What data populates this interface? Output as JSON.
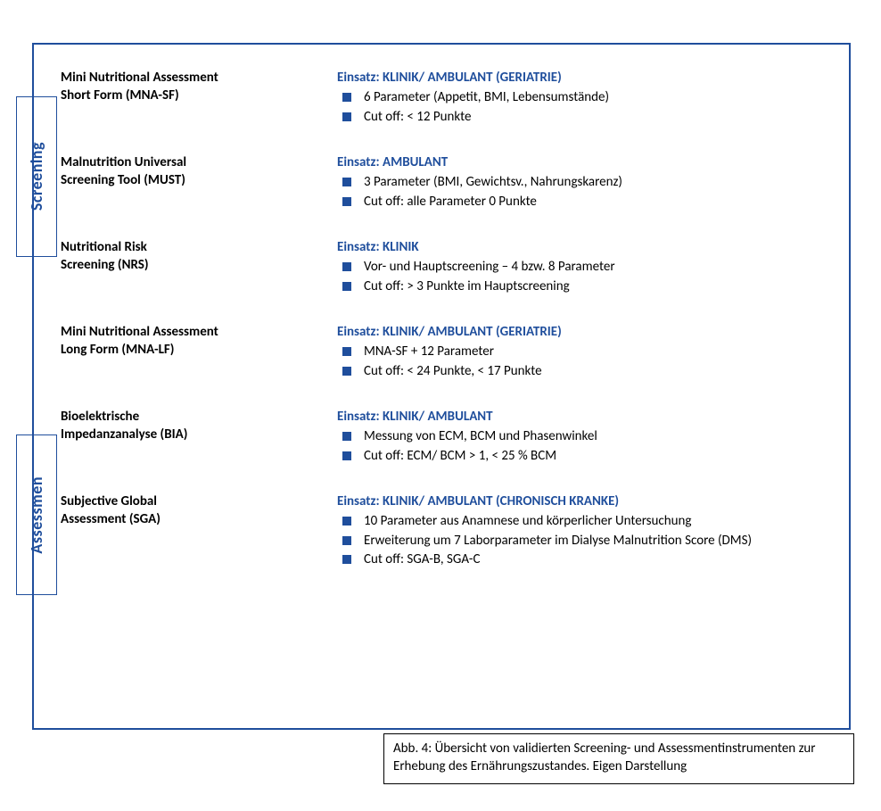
{
  "colors": {
    "accent": "#1f4e9c",
    "text": "#000000",
    "bg": "#ffffff"
  },
  "sideLabels": {
    "screening": "Screening",
    "assessment": "Assessmen"
  },
  "einsatzPrefix": "Einsatz: ",
  "sections": [
    {
      "id": "mna-sf",
      "title_line1": "Mini Nutritional Assessment",
      "title_line2": "Short Form (MNA-SF)",
      "einsatz": "KLINIK/ AMBULANT (GERIATRIE)",
      "bullets": [
        "6 Parameter (Appetit, BMI, Lebensumstände)",
        "Cut off: < 12 Punkte"
      ]
    },
    {
      "id": "must",
      "title_line1": "Malnutrition Universal",
      "title_line2": "Screening Tool (MUST)",
      "einsatz": "AMBULANT",
      "bullets": [
        "3 Parameter (BMI, Gewichtsv., Nahrungskarenz)",
        "Cut off: alle Parameter 0 Punkte"
      ]
    },
    {
      "id": "nrs",
      "title_line1": "Nutritional Risk",
      "title_line2": "Screening (NRS)",
      "einsatz": "KLINIK",
      "bullets": [
        "Vor- und Hauptscreening – 4 bzw. 8 Parameter",
        "Cut off: > 3 Punkte im Hauptscreening"
      ]
    },
    {
      "id": "mna-lf",
      "title_line1": "Mini Nutritional Assessment",
      "title_line2": "Long Form (MNA-LF)",
      "einsatz": "KLINIK/ AMBULANT (GERIATRIE)",
      "bullets": [
        "MNA-SF + 12 Parameter",
        "Cut off: < 24 Punkte, < 17 Punkte"
      ]
    },
    {
      "id": "bia",
      "title_line1": "Bioelektrische",
      "title_line2": "Impedanzanalyse (BIA)",
      "einsatz": "KLINIK/ AMBULANT",
      "bullets": [
        "Messung von ECM, BCM und Phasenwinkel",
        "Cut off: ECM/ BCM > 1, < 25 % BCM"
      ]
    },
    {
      "id": "sga",
      "title_line1": "Subjective Global",
      "title_line2": "Assessment (SGA)",
      "einsatz": "KLINIK/ AMBULANT (CHRONISCH KRANKE)",
      "bullets": [
        "10 Parameter aus Anamnese und körperlicher Untersuchung",
        "Erweiterung um 7 Laborparameter im Dialyse Malnutrition Score (DMS)",
        "Cut off: SGA-B, SGA-C"
      ]
    }
  ],
  "caption": "Abb. 4: Übersicht von validierten Screening- und Assessmentinstrumenten zur Erhebung des Ernährungszustandes. Eigen Darstellung"
}
